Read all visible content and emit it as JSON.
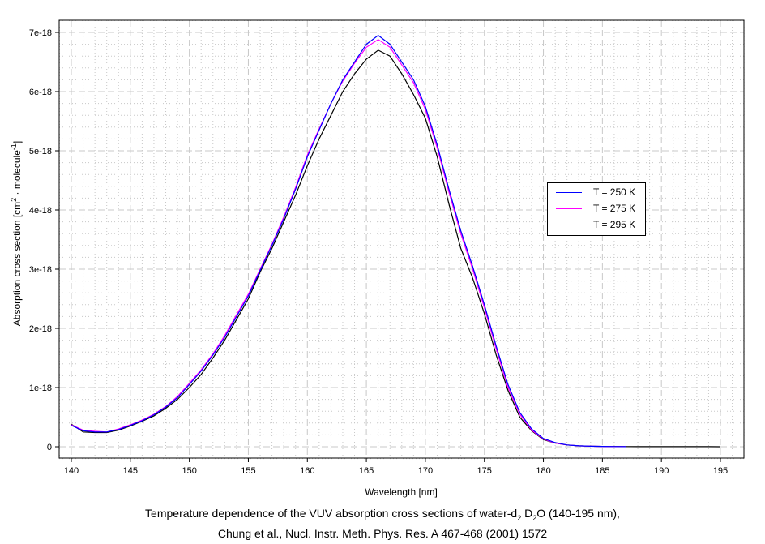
{
  "chart_data": {
    "type": "line",
    "xlabel": "Wavelength [nm]",
    "ylabel": {
      "main": "Absorption cross section [cm",
      "sup1": "2",
      "mid": " · molecule",
      "sup2": "-1",
      "end": "]"
    },
    "xlim": [
      139,
      197
    ],
    "ylim": [
      -0.15,
      7.35
    ],
    "y_scale": "1e-18",
    "xticks": [
      140,
      145,
      150,
      155,
      160,
      165,
      170,
      175,
      180,
      185,
      190,
      195
    ],
    "yticks": [
      {
        "v": 0,
        "label": "0"
      },
      {
        "v": 1,
        "label": "1e-18"
      },
      {
        "v": 2,
        "label": "2e-18"
      },
      {
        "v": 3,
        "label": "3e-18"
      },
      {
        "v": 4,
        "label": "4e-18"
      },
      {
        "v": 5,
        "label": "5e-18"
      },
      {
        "v": 6,
        "label": "6e-18"
      },
      {
        "v": 7,
        "label": "7e-18"
      }
    ],
    "grid": true,
    "legend_position": "right",
    "series": [
      {
        "name": "T = 250 K",
        "color": "#0000ff",
        "x0": 140,
        "values": [
          0.36,
          0.27,
          0.25,
          0.25,
          0.29,
          0.36,
          0.44,
          0.54,
          0.67,
          0.83,
          1.05,
          1.28,
          1.55,
          1.85,
          2.2,
          2.55,
          2.98,
          3.4,
          3.85,
          4.35,
          4.9,
          5.35,
          5.8,
          6.2,
          6.5,
          6.8,
          6.95,
          6.8,
          6.5,
          6.2,
          5.75,
          5.1,
          4.35,
          3.65,
          3.05,
          2.4,
          1.7,
          1.05,
          0.58,
          0.3,
          0.14,
          0.07,
          0.03,
          0.015,
          0.008,
          0.005,
          0.003,
          0.002
        ]
      },
      {
        "name": "T = 275 K",
        "color": "#ff00ff",
        "x0": 140,
        "values": [
          0.37,
          0.28,
          0.26,
          0.25,
          0.3,
          0.37,
          0.45,
          0.55,
          0.68,
          0.85,
          1.07,
          1.3,
          1.57,
          1.88,
          2.23,
          2.58,
          3.0,
          3.42,
          3.88,
          4.38,
          4.93,
          5.37,
          5.8,
          6.18,
          6.48,
          6.75,
          6.88,
          6.75,
          6.45,
          6.15,
          5.7,
          5.05,
          4.3,
          3.6,
          3.0,
          2.35,
          1.65,
          1.0,
          0.55,
          0.28,
          0.13,
          0.06,
          0.03,
          0.015,
          0.008,
          0.005,
          0.003,
          0.002
        ]
      },
      {
        "name": "T = 295 K",
        "color": "#000000",
        "x0": 140,
        "values": [
          0.38,
          0.25,
          0.24,
          0.24,
          0.28,
          0.35,
          0.43,
          0.52,
          0.65,
          0.8,
          1.0,
          1.22,
          1.5,
          1.8,
          2.15,
          2.5,
          2.95,
          3.35,
          3.8,
          4.25,
          4.75,
          5.2,
          5.6,
          6.0,
          6.3,
          6.55,
          6.7,
          6.6,
          6.3,
          5.95,
          5.55,
          4.9,
          4.1,
          3.35,
          2.85,
          2.25,
          1.55,
          0.95,
          0.5,
          0.27,
          0.12,
          0.06,
          0.03,
          0.015,
          0.01,
          0.005,
          0.004,
          0.003,
          0.002,
          0.002,
          0.002,
          0.001,
          0.001,
          0.001,
          0.001,
          0.0
        ]
      }
    ]
  },
  "caption": {
    "line1_a": "Temperature dependence of the VUV absorption cross sections of water-d",
    "sub1": "2",
    "line1_b": " D",
    "sub2": "2",
    "line1_c": "O (140-195 nm),",
    "line2": "Chung et al., Nucl. Instr. Meth. Phys. Res. A 467-468 (2001) 1572"
  }
}
